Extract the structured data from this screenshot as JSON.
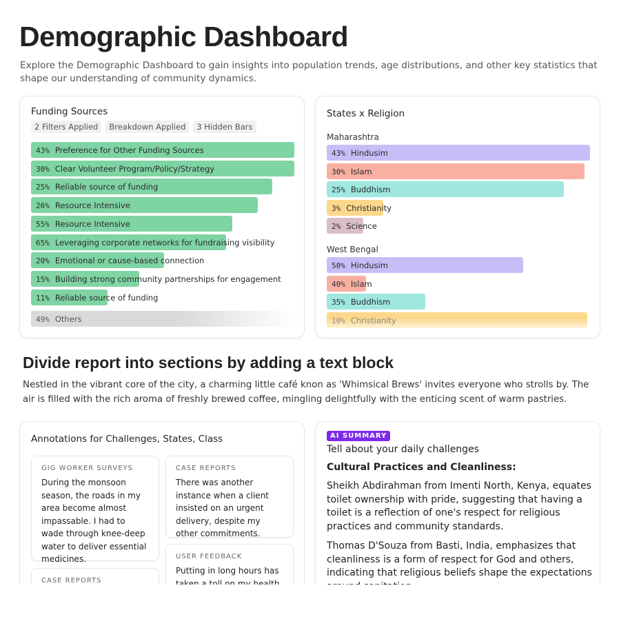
{
  "header": {
    "title": "Demographic Dashboard",
    "subtitle": "Explore the Demographic Dashboard to gain insights into population trends, age distributions, and other key statistics that shape our understanding of community dynamics."
  },
  "funding": {
    "title": "Funding Sources",
    "chips": [
      "2 Filters Applied",
      "Breakdown Applied",
      "3 Hidden Bars"
    ],
    "color": "#7fd4a3",
    "others_color": "#d9d9d9",
    "bars": [
      {
        "pct": "43%",
        "label": "Preference for Other Funding Sources",
        "fill": 1.0
      },
      {
        "pct": "30%",
        "label": "Clear Volunteer Program/Policy/Strategy",
        "fill": 1.0
      },
      {
        "pct": "25%",
        "label": "Reliable source of funding",
        "fill": 0.915
      },
      {
        "pct": "26%",
        "label": "Resource Intensive",
        "fill": 0.86
      },
      {
        "pct": "55%",
        "label": "Resource Intensive",
        "fill": 0.765
      },
      {
        "pct": "65%",
        "label": "Leveraging corporate networks for fundraising visibility",
        "fill": 0.74
      },
      {
        "pct": "20%",
        "label": "Emotional or cause-based connection",
        "fill": 0.505
      },
      {
        "pct": "15%",
        "label": "Building strong community partnerships for engagement",
        "fill": 0.41
      },
      {
        "pct": "11%",
        "label": "Reliable source of funding",
        "fill": 0.29
      }
    ],
    "others": {
      "pct": "49%",
      "label": "Others"
    }
  },
  "states": {
    "title": "States x Religion",
    "groups": [
      {
        "name": "Maharashtra",
        "bars": [
          {
            "pct": "43%",
            "label": "Hindusim",
            "fill": 1.0,
            "color": "#c8bdf7"
          },
          {
            "pct": "30%",
            "label": "Islam",
            "fill": 0.98,
            "color": "#f9b0a2"
          },
          {
            "pct": "25%",
            "label": "Buddhism",
            "fill": 0.9,
            "color": "#9fe7df"
          },
          {
            "pct": "3%",
            "label": "Christianity",
            "fill": 0.215,
            "color": "#fbd88c"
          },
          {
            "pct": "2%",
            "label": "Science",
            "fill": 0.14,
            "color": "#d9bfc5"
          }
        ]
      },
      {
        "name": "West Bengal",
        "bars": [
          {
            "pct": "50%",
            "label": "Hindusim",
            "fill": 0.745,
            "color": "#c8bdf7"
          },
          {
            "pct": "40%",
            "label": "Islam",
            "fill": 0.15,
            "color": "#f9b0a2"
          },
          {
            "pct": "35%",
            "label": "Buddhism",
            "fill": 0.375,
            "color": "#9fe7df"
          },
          {
            "pct": "10%",
            "label": "Christianity",
            "fill": 0.99,
            "color": "#fbd88c"
          }
        ]
      }
    ]
  },
  "section": {
    "heading": "Divide report into sections by adding a text block",
    "body": "Nestled in the vibrant core of the city, a charming little café knon as 'Whimsical Brews' invites everyone who strolls by. The air is filled with the rich aroma of freshly brewed coffee, mingling delightfully with the enticing scent of warm pastries."
  },
  "annotations": {
    "title": "Annotations for Challenges, States, Class",
    "notes": [
      {
        "type": "GIG WORKER SURVEYS",
        "text": "During the monsoon season, the roads in my area become almost impassable. I had to wade through knee-deep water to deliver essential medicines."
      },
      {
        "type": "CASE REPORTS",
        "text": "There was another instance when a client insisted on an urgent delivery, despite my other commitments."
      },
      {
        "type": "USER FEEDBACK",
        "text": "Putting in long hours has taken a toll on my health"
      },
      {
        "type": "CASE REPORTS",
        "text": ""
      }
    ]
  },
  "ai": {
    "badge": "AI SUMMARY",
    "question": "Tell about your daily challenges",
    "heading": "Cultural Practices and Cleanliness:",
    "para1": "Sheikh Abdirahman from Imenti North, Kenya, equates toilet ownership with pride, suggesting that having a toilet is a reflection of one's respect for religious practices and community standards.",
    "para2": "Thomas D'Souza from Basti, India, emphasizes that cleanliness is a form of respect for God and others, indicating that religious beliefs shape the expectations around sanitation."
  }
}
